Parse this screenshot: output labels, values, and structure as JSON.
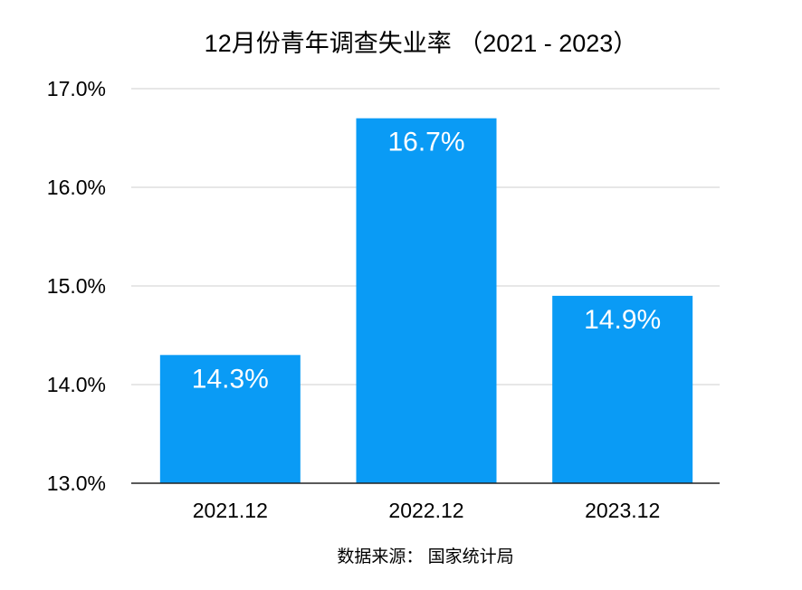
{
  "chart_data": {
    "type": "bar",
    "title": "12月份青年调查失业率 （2021 - 2023）",
    "categories": [
      "2021.12",
      "2022.12",
      "2023.12"
    ],
    "values": [
      14.3,
      16.7,
      14.9
    ],
    "value_labels": [
      "14.3%",
      "16.7%",
      "14.9%"
    ],
    "ylim": [
      13.0,
      17.0
    ],
    "yticks": [
      13.0,
      14.0,
      15.0,
      16.0,
      17.0
    ],
    "ytick_labels": [
      "13.0%",
      "14.0%",
      "15.0%",
      "16.0%",
      "17.0%"
    ],
    "xlabel": "",
    "ylabel": "",
    "grid": true,
    "bar_color": "#0a9bf5",
    "source": "数据来源： 国家统计局"
  }
}
